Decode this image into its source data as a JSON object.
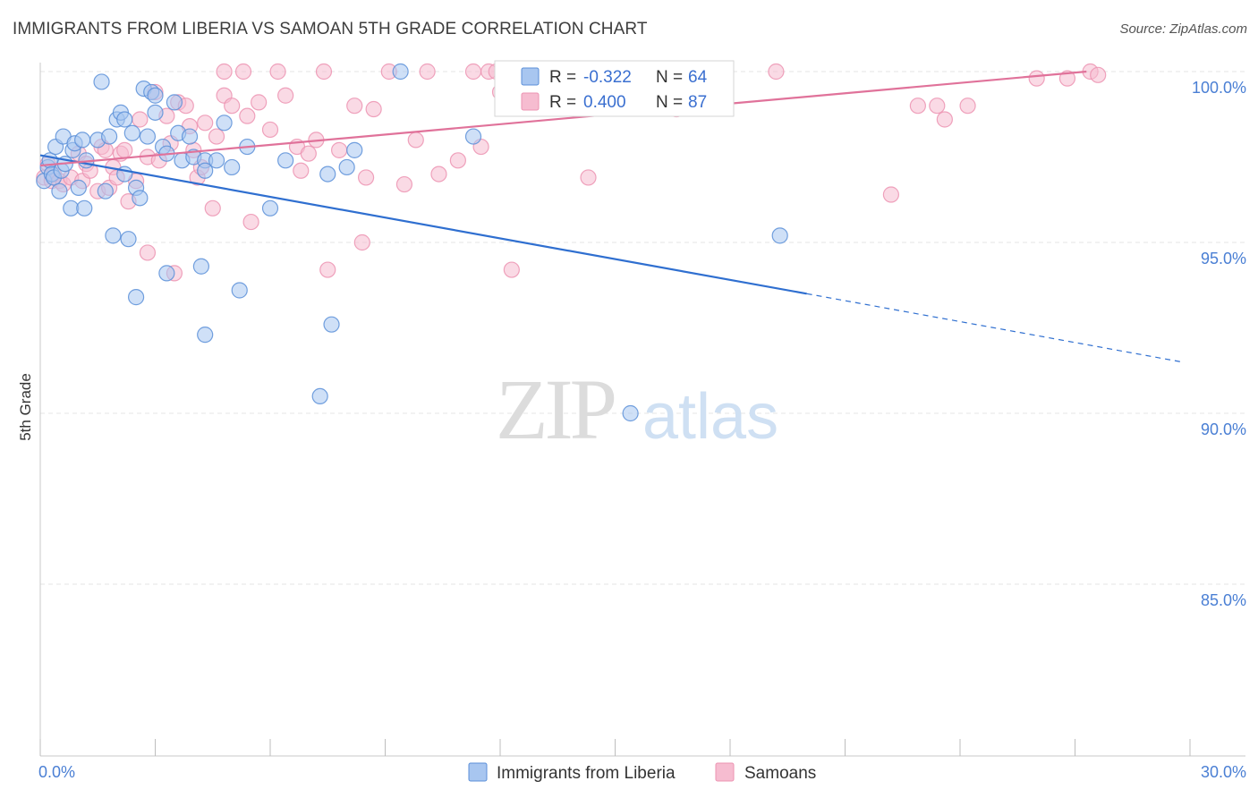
{
  "header": {
    "title": "IMMIGRANTS FROM LIBERIA VS SAMOAN 5TH GRADE CORRELATION CHART",
    "source": "Source: ZipAtlas.com"
  },
  "watermark": {
    "zip": "ZIP",
    "atlas": "atlas"
  },
  "stats": {
    "liberia": {
      "r_label": "R =",
      "r_value": "-0.322",
      "n_label": "N =",
      "n_value": "64"
    },
    "samoan": {
      "r_label": "R =",
      "r_value": "0.400",
      "n_label": "N =",
      "n_value": "87"
    }
  },
  "colors": {
    "liberia_fill": "#a8c6f0",
    "liberia_stroke": "#5b8fd8",
    "liberia_line": "#2f6fd0",
    "samoan_fill": "#f6bcd0",
    "samoan_stroke": "#ec93b2",
    "samoan_line": "#e0729a",
    "grid": "#e5e5e5",
    "tick_text": "#4a7fd4"
  },
  "chart_data": {
    "type": "scatter",
    "title": "IMMIGRANTS FROM LIBERIA VS SAMOAN 5TH GRADE CORRELATION CHART",
    "xlabel": "",
    "ylabel": "5th Grade",
    "xlim": [
      0,
      30
    ],
    "ylim": [
      80.5,
      100.8
    ],
    "x_ticks": [
      {
        "value": 0,
        "label": "0.0%"
      },
      {
        "value": 30,
        "label": "30.0%"
      }
    ],
    "y_ticks": [
      {
        "value": 100,
        "label": "100.0%"
      },
      {
        "value": 95,
        "label": "95.0%"
      },
      {
        "value": 90,
        "label": "90.0%"
      },
      {
        "value": 85,
        "label": "85.0%"
      }
    ],
    "grid": true,
    "legend_position": "bottom-center",
    "series": [
      {
        "name": "Immigrants from Liberia",
        "color": "#5b8fd8",
        "trend": {
          "x0": 0,
          "y0": 97.55,
          "x1": 20.0,
          "y1": 93.5,
          "dash_to_x": 29.8,
          "dash_to_y": 91.5
        },
        "points": [
          [
            0.1,
            96.8
          ],
          [
            0.2,
            97.2
          ],
          [
            0.25,
            97.4
          ],
          [
            0.3,
            97.0
          ],
          [
            0.35,
            96.9
          ],
          [
            0.4,
            97.8
          ],
          [
            0.5,
            96.5
          ],
          [
            0.55,
            97.1
          ],
          [
            0.6,
            98.1
          ],
          [
            0.65,
            97.3
          ],
          [
            0.8,
            96.0
          ],
          [
            0.85,
            97.7
          ],
          [
            0.9,
            97.9
          ],
          [
            1.0,
            96.6
          ],
          [
            1.1,
            98.0
          ],
          [
            1.15,
            96.0
          ],
          [
            1.2,
            97.4
          ],
          [
            1.5,
            98.0
          ],
          [
            1.6,
            99.7
          ],
          [
            1.7,
            96.5
          ],
          [
            1.8,
            98.1
          ],
          [
            1.9,
            95.2
          ],
          [
            2.0,
            98.6
          ],
          [
            2.1,
            98.8
          ],
          [
            2.2,
            98.6
          ],
          [
            2.2,
            97.0
          ],
          [
            2.3,
            95.1
          ],
          [
            2.4,
            98.2
          ],
          [
            2.5,
            96.6
          ],
          [
            2.5,
            93.4
          ],
          [
            2.6,
            96.3
          ],
          [
            2.7,
            99.5
          ],
          [
            2.8,
            98.1
          ],
          [
            2.9,
            99.4
          ],
          [
            3.0,
            99.3
          ],
          [
            3.0,
            98.8
          ],
          [
            3.2,
            97.8
          ],
          [
            3.3,
            97.6
          ],
          [
            3.3,
            94.1
          ],
          [
            3.5,
            99.1
          ],
          [
            3.6,
            98.2
          ],
          [
            3.7,
            97.4
          ],
          [
            3.9,
            98.1
          ],
          [
            4.0,
            97.5
          ],
          [
            4.2,
            94.3
          ],
          [
            4.3,
            97.4
          ],
          [
            4.3,
            97.1
          ],
          [
            4.3,
            92.3
          ],
          [
            4.6,
            97.4
          ],
          [
            4.8,
            98.5
          ],
          [
            5.0,
            97.2
          ],
          [
            5.2,
            93.6
          ],
          [
            5.4,
            97.8
          ],
          [
            6.0,
            96.0
          ],
          [
            6.4,
            97.4
          ],
          [
            7.3,
            90.5
          ],
          [
            7.5,
            97.0
          ],
          [
            7.6,
            92.6
          ],
          [
            8.0,
            97.2
          ],
          [
            8.2,
            97.7
          ],
          [
            9.4,
            100.0
          ],
          [
            11.3,
            98.1
          ],
          [
            15.4,
            90.0
          ],
          [
            19.3,
            95.2
          ]
        ]
      },
      {
        "name": "Samoans",
        "color": "#ec93b2",
        "trend": {
          "x0": 0,
          "y0": 97.25,
          "x1": 27.3,
          "y1": 100.0
        },
        "points": [
          [
            0.1,
            96.9
          ],
          [
            0.2,
            97.3
          ],
          [
            0.3,
            96.8
          ],
          [
            0.35,
            97.0
          ],
          [
            0.5,
            96.8
          ],
          [
            0.6,
            96.7
          ],
          [
            0.8,
            96.9
          ],
          [
            1.0,
            97.6
          ],
          [
            1.1,
            96.8
          ],
          [
            1.2,
            97.3
          ],
          [
            1.3,
            97.1
          ],
          [
            1.5,
            96.5
          ],
          [
            1.6,
            97.8
          ],
          [
            1.7,
            97.7
          ],
          [
            1.8,
            96.6
          ],
          [
            1.9,
            97.2
          ],
          [
            2.0,
            96.9
          ],
          [
            2.1,
            97.6
          ],
          [
            2.2,
            97.7
          ],
          [
            2.3,
            96.2
          ],
          [
            2.5,
            96.8
          ],
          [
            2.6,
            98.6
          ],
          [
            2.8,
            97.5
          ],
          [
            2.8,
            94.7
          ],
          [
            3.0,
            99.4
          ],
          [
            3.1,
            97.4
          ],
          [
            3.3,
            98.7
          ],
          [
            3.4,
            97.9
          ],
          [
            3.5,
            94.1
          ],
          [
            3.6,
            99.1
          ],
          [
            3.8,
            99.0
          ],
          [
            3.9,
            98.4
          ],
          [
            4.0,
            97.7
          ],
          [
            4.1,
            96.9
          ],
          [
            4.2,
            97.2
          ],
          [
            4.3,
            98.5
          ],
          [
            4.5,
            96.0
          ],
          [
            4.6,
            98.1
          ],
          [
            4.8,
            100.0
          ],
          [
            4.8,
            99.3
          ],
          [
            5.0,
            99.0
          ],
          [
            5.3,
            100.0
          ],
          [
            5.4,
            98.7
          ],
          [
            5.5,
            95.6
          ],
          [
            5.7,
            99.1
          ],
          [
            6.0,
            98.3
          ],
          [
            6.2,
            100.0
          ],
          [
            6.4,
            99.3
          ],
          [
            6.7,
            97.8
          ],
          [
            6.8,
            97.1
          ],
          [
            7.0,
            97.6
          ],
          [
            7.2,
            98.0
          ],
          [
            7.4,
            100.0
          ],
          [
            7.5,
            94.2
          ],
          [
            7.8,
            97.7
          ],
          [
            8.2,
            99.0
          ],
          [
            8.4,
            95.0
          ],
          [
            8.5,
            96.9
          ],
          [
            8.7,
            98.9
          ],
          [
            9.1,
            100.0
          ],
          [
            9.5,
            96.7
          ],
          [
            9.8,
            98.0
          ],
          [
            10.1,
            100.0
          ],
          [
            10.4,
            97.0
          ],
          [
            10.9,
            97.4
          ],
          [
            11.3,
            100.0
          ],
          [
            11.5,
            97.8
          ],
          [
            11.7,
            100.0
          ],
          [
            11.9,
            100.0
          ],
          [
            12.0,
            99.4
          ],
          [
            12.3,
            94.2
          ],
          [
            12.4,
            99.1
          ],
          [
            13.0,
            100.0
          ],
          [
            14.0,
            100.0
          ],
          [
            14.3,
            96.9
          ],
          [
            15.6,
            100.0
          ],
          [
            16.6,
            98.9
          ],
          [
            19.2,
            100.0
          ],
          [
            22.2,
            96.4
          ],
          [
            22.9,
            99.0
          ],
          [
            23.4,
            99.0
          ],
          [
            23.6,
            98.6
          ],
          [
            24.2,
            99.0
          ],
          [
            26.0,
            99.8
          ],
          [
            26.8,
            99.8
          ],
          [
            27.4,
            100.0
          ],
          [
            27.6,
            99.9
          ]
        ]
      }
    ]
  }
}
